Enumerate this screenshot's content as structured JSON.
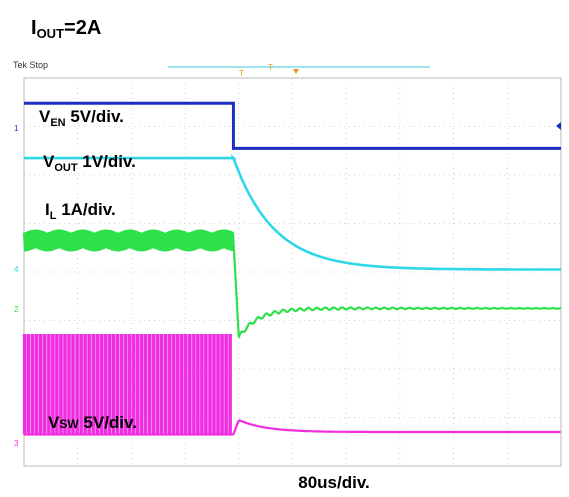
{
  "header": {
    "title_main": "I",
    "title_sub": "OUT",
    "title_rest": "=2A"
  },
  "scope": {
    "status": "Tek Stop",
    "trigger_marker": "T"
  },
  "channel_markers": [
    "1",
    "2",
    "3",
    "4"
  ],
  "labels": {
    "ven": {
      "main": "V",
      "sub": "EN",
      "rest": " 5V/div."
    },
    "vout": {
      "main": "V",
      "sub": "OUT",
      "rest": "  1V/div."
    },
    "il": {
      "main": "I",
      "sub": "L",
      "rest": " 1A/div."
    },
    "vsw": {
      "main": "V",
      "sub": "SW",
      "rest": " 5V/div."
    }
  },
  "chart_data": {
    "type": "line",
    "title": "",
    "xlabel": "80us/div.",
    "ylabel": "",
    "grid": true,
    "x_range_div": [
      0,
      10
    ],
    "y_range_div": [
      -4,
      4
    ],
    "series": [
      {
        "name": "VEN 5V/div.",
        "color": "#1c2fc4",
        "before_div": 3.48,
        "after_div": 2.55,
        "event_div": 3.9
      },
      {
        "name": "VOUT 1V/div.",
        "color": "#2ed8e8",
        "before_div": 2.35,
        "after_div": 0.05,
        "event_div": 3.9
      },
      {
        "name": "IL 1A/div.",
        "color": "#2ee04a",
        "before_div": 0.65,
        "ripple_div": 0.45,
        "after_div": -0.75,
        "dip_div": -1.35,
        "event_div": 3.9
      },
      {
        "name": "VSW 5V/div.",
        "color": "#ee2ee0",
        "low_div": -3.35,
        "high_div": -1.3,
        "event_div": 3.9,
        "bump_div": -3.05
      }
    ]
  }
}
